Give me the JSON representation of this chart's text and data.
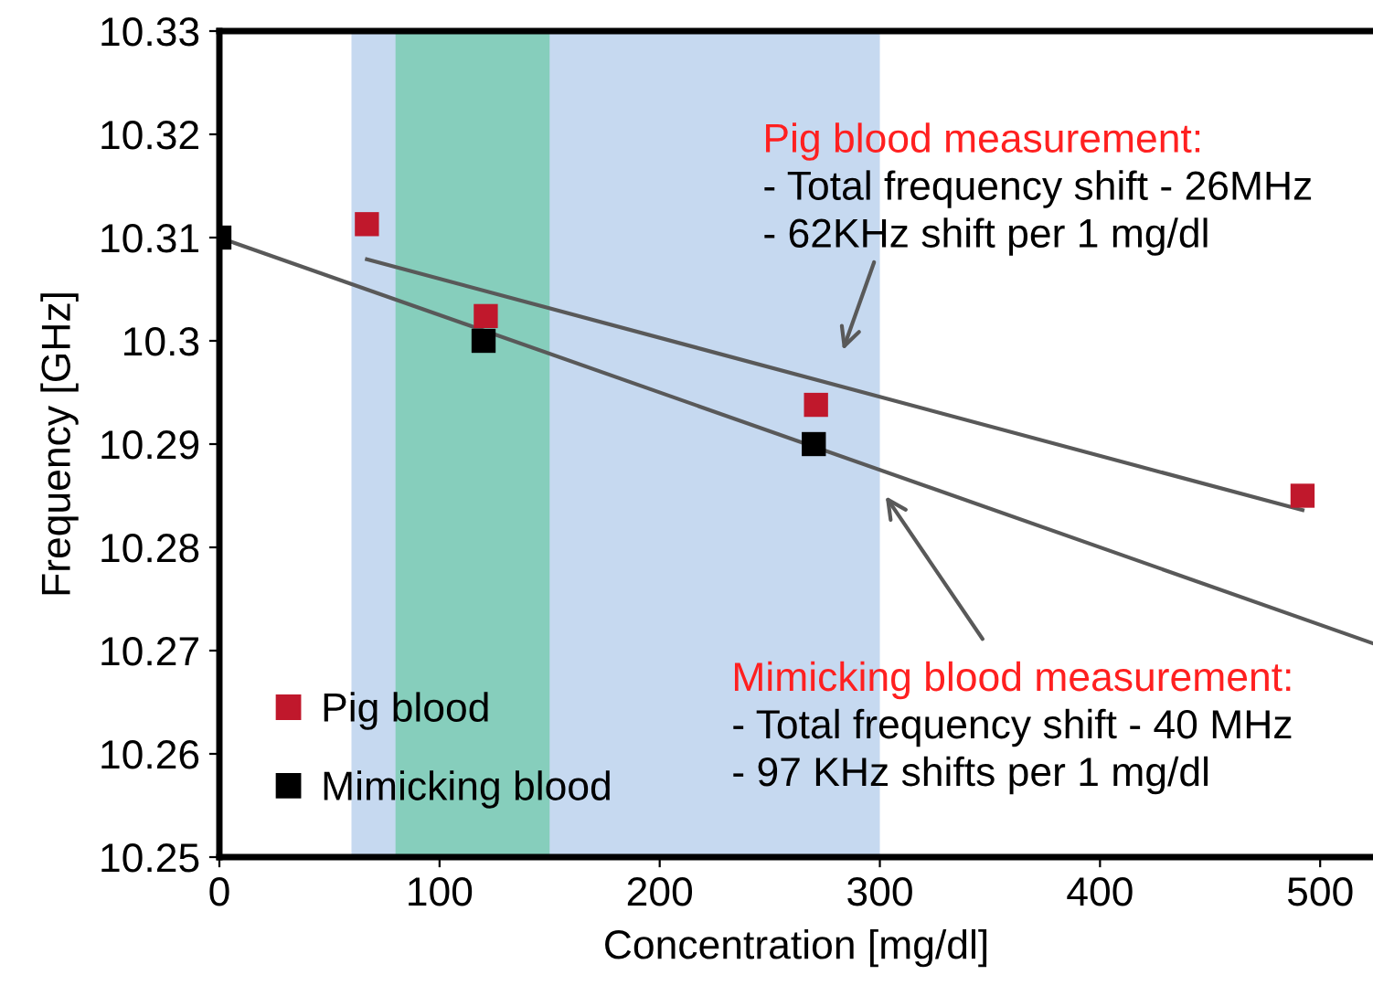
{
  "chart_data": {
    "type": "scatter",
    "xlabel": "Concentration [mg/dl]",
    "ylabel": "Frequency [GHz]",
    "xlim": [
      0,
      524
    ],
    "xticks": [
      0,
      100,
      200,
      300,
      400,
      500
    ],
    "ylim": [
      10.25,
      10.33
    ],
    "yticks": [
      10.25,
      10.26,
      10.27,
      10.28,
      10.29,
      10.3,
      10.31,
      10.32,
      10.33
    ],
    "grid": false,
    "legend": "bottom left",
    "marker": "square",
    "bands": [
      {
        "axis": "x",
        "from": 60,
        "to": 300,
        "color": "#c6d9f0"
      },
      {
        "axis": "x",
        "from": 80,
        "to": 150,
        "color": "#86cebc"
      }
    ],
    "series": [
      {
        "name": "Pig blood",
        "color": "#c0182c",
        "x": [
          67,
          121,
          271,
          492
        ],
        "values": [
          10.3113,
          10.3024,
          10.2938,
          10.285
        ]
      },
      {
        "name": "Mimicking blood",
        "color": "#000000",
        "x": [
          0,
          120,
          270
        ],
        "values": [
          10.31,
          10.3,
          10.29
        ]
      },
      {
        "type": "line",
        "color": "#595959",
        "marker": "none",
        "x": [
          67,
          492
        ],
        "values": [
          10.3079,
          10.2836
        ]
      },
      {
        "type": "line",
        "color": "#595959",
        "marker": "none",
        "x": [
          0,
          524
        ],
        "values": [
          10.31,
          10.2707
        ]
      }
    ],
    "annotations": [
      "Pig blood measurement:\n- Total frequency shift - 26MHz\n- 62KHz shift per 1 mg/dl",
      "Mimicking blood measurement:\n- Total frequency shift - 40 MHz\n- 97 KHz shifts per 1 mg/dl"
    ]
  }
}
